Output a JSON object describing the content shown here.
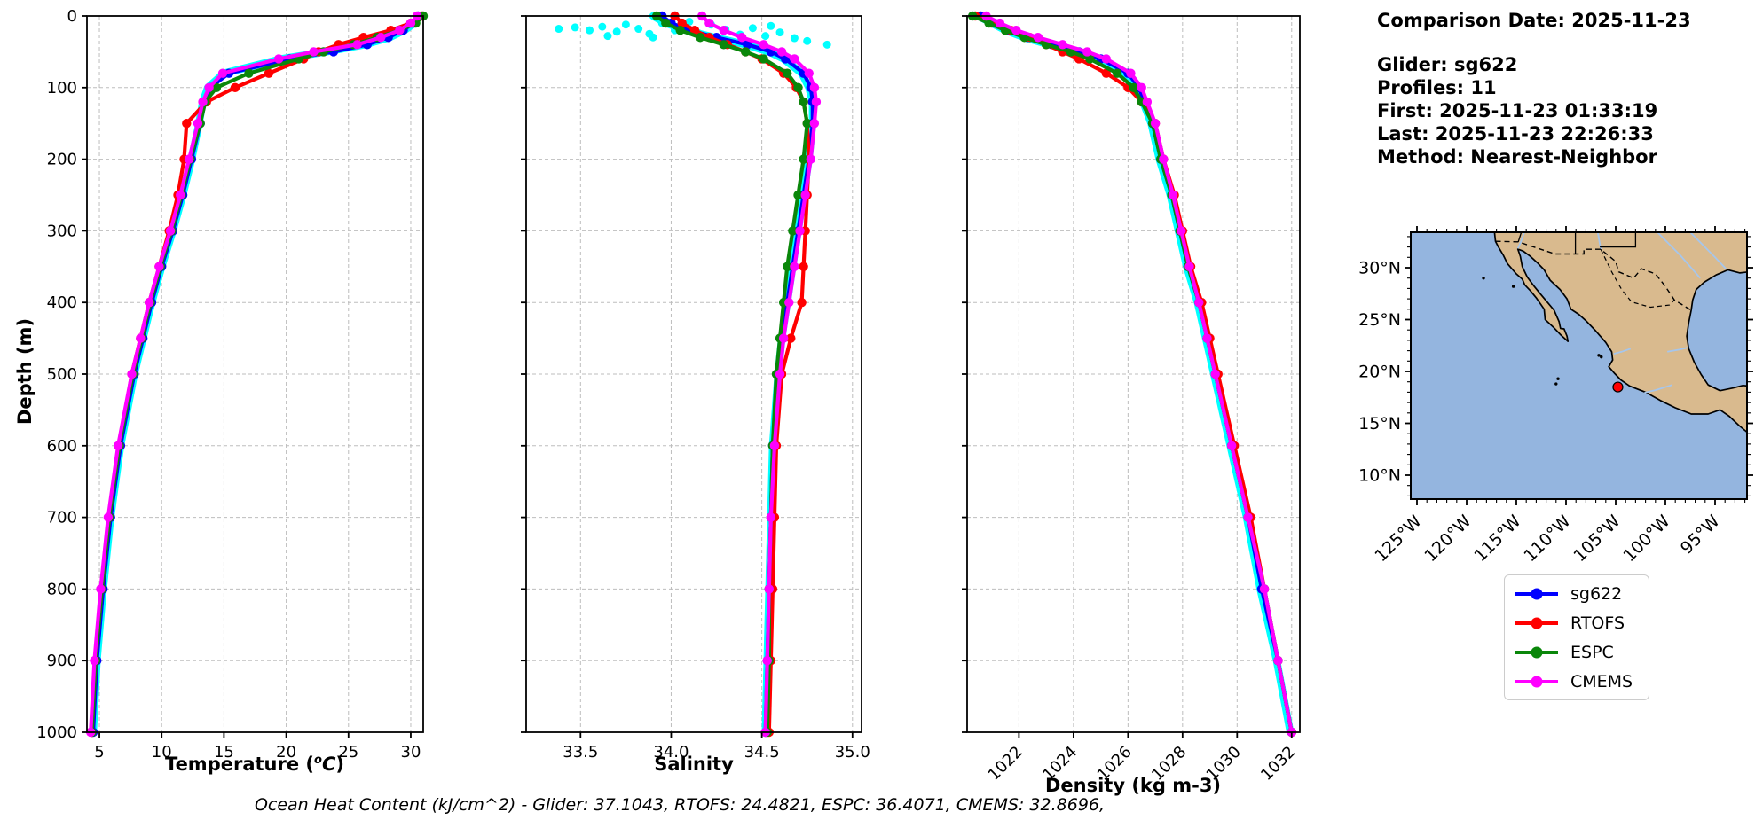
{
  "header": {
    "comparison_date": "Comparison Date: 2025-11-23",
    "glider": "Glider: sg622",
    "profiles": "Profiles: 11",
    "first": "First: 2025-11-23 01:33:19",
    "last": "Last: 2025-11-23 22:26:33",
    "method": "Method: Nearest-Neighbor"
  },
  "caption": "Ocean Heat Content (kJ/cm^2) - Glider: 37.1043,  RTOFS: 24.4821,  ESPC: 36.4071,  CMEMS: 32.8696,",
  "ocean_heat_content": {
    "units": "kJ/cm^2",
    "glider": 37.1043,
    "rtofs": 24.4821,
    "espc": 36.4071,
    "cmems": 32.8696
  },
  "ylabel": "Depth (m)",
  "temperature_xlabel": {
    "pre": "Temperature (",
    "sup": "o",
    "italic": "C",
    "post": ")"
  },
  "legend": {
    "items": [
      {
        "label": "sg622",
        "color": "#0000ff"
      },
      {
        "label": "RTOFS",
        "color": "#ff0000"
      },
      {
        "label": "ESPC",
        "color": "#0a870a"
      },
      {
        "label": "CMEMS",
        "color": "#ff00ff"
      }
    ]
  },
  "map": {
    "xtick_labels": [
      "125°W",
      "120°W",
      "115°W",
      "110°W",
      "105°W",
      "100°W",
      "95°W"
    ],
    "ytick_labels": [
      "30°N",
      "25°N",
      "20°N",
      "15°N",
      "10°N"
    ],
    "marker": {
      "lon": -104.78,
      "lat": 18.5,
      "color": "#ff0000"
    },
    "ocean_color": "#94b5df",
    "land_color": "#d9ba8e",
    "river_color": "#a6c6ec"
  },
  "chart_data": [
    {
      "id": "temperature",
      "type": "line",
      "xlabel": "Temperature (°C)",
      "ylabel": "Depth (m)",
      "xlim": [
        4.0,
        31.0
      ],
      "ylim": [
        0,
        1000
      ],
      "grid": true,
      "xticks": [
        5,
        10,
        15,
        20,
        25,
        30
      ],
      "xtick_labels": [
        "5",
        "10",
        "15",
        "20",
        "25",
        "30"
      ],
      "yticks": [
        0,
        100,
        200,
        300,
        400,
        500,
        600,
        700,
        800,
        900,
        1000
      ],
      "ytick_labels": [
        "0",
        "100",
        "200",
        "300",
        "400",
        "500",
        "600",
        "700",
        "800",
        "900",
        "1000"
      ],
      "depths": [
        0,
        10,
        20,
        30,
        40,
        50,
        60,
        80,
        100,
        120,
        150,
        200,
        250,
        300,
        350,
        400,
        450,
        500,
        600,
        700,
        800,
        900,
        1000
      ],
      "raw_series": {
        "name": "glider-raw",
        "color": "#00ffff",
        "values": [
          30.7,
          30.3,
          29.5,
          28.3,
          26.3,
          23.2,
          19.6,
          15.0,
          13.7,
          13.3,
          13.0,
          12.4,
          11.7,
          10.9,
          10.0,
          9.2,
          8.5,
          7.8,
          6.7,
          5.9,
          5.3,
          4.8,
          4.5
        ]
      },
      "series": [
        {
          "name": "sg622",
          "color": "#0000ff",
          "values": [
            30.6,
            30.2,
            29.4,
            28.2,
            26.5,
            23.8,
            20.3,
            15.4,
            13.9,
            13.4,
            13.1,
            12.4,
            11.7,
            10.9,
            10.0,
            9.2,
            8.5,
            7.8,
            6.7,
            5.9,
            5.3,
            4.8,
            4.5
          ]
        },
        {
          "name": "RTOFS",
          "color": "#ff0000",
          "values": [
            30.9,
            30.0,
            28.4,
            26.2,
            24.2,
            22.6,
            21.4,
            18.6,
            15.9,
            13.6,
            12.0,
            11.8,
            11.3,
            10.6,
            9.8,
            9.0,
            8.3,
            7.6,
            6.6,
            5.8,
            5.2,
            4.7,
            4.4
          ]
        },
        {
          "name": "ESPC",
          "color": "#0a870a",
          "values": [
            31.0,
            30.4,
            29.1,
            27.3,
            25.4,
            23.0,
            21.0,
            17.0,
            14.4,
            13.5,
            13.1,
            12.3,
            11.6,
            10.8,
            9.9,
            9.1,
            8.4,
            7.7,
            6.6,
            5.8,
            5.2,
            4.7,
            4.4
          ]
        },
        {
          "name": "CMEMS",
          "color": "#ff00ff",
          "values": [
            30.5,
            30.0,
            29.1,
            27.6,
            25.7,
            22.2,
            19.4,
            14.9,
            13.8,
            13.3,
            12.9,
            12.2,
            11.5,
            10.7,
            9.8,
            9.0,
            8.3,
            7.6,
            6.5,
            5.7,
            5.1,
            4.6,
            4.3
          ]
        }
      ]
    },
    {
      "id": "salinity",
      "type": "line",
      "xlabel": "Salinity",
      "ylabel": "",
      "xlim": [
        33.2,
        35.05
      ],
      "ylim": [
        0,
        1000
      ],
      "grid": true,
      "xticks": [
        33.5,
        34.0,
        34.5,
        35.0
      ],
      "xtick_labels": [
        "33.5",
        "34.0",
        "34.5",
        "35.0"
      ],
      "yticks": [
        0,
        100,
        200,
        300,
        400,
        500,
        600,
        700,
        800,
        900,
        1000
      ],
      "ytick_labels": [],
      "depths": [
        0,
        10,
        20,
        30,
        40,
        50,
        60,
        80,
        100,
        120,
        150,
        200,
        250,
        300,
        350,
        400,
        450,
        500,
        600,
        700,
        800,
        900,
        1000
      ],
      "raw_scatter": {
        "name": "glider-raw-scatter",
        "color": "#00ffff",
        "points": [
          [
            33.38,
            18
          ],
          [
            33.47,
            16
          ],
          [
            33.55,
            20
          ],
          [
            33.62,
            15
          ],
          [
            33.7,
            22
          ],
          [
            33.75,
            12
          ],
          [
            33.82,
            18
          ],
          [
            33.88,
            25
          ],
          [
            33.95,
            10
          ],
          [
            34.02,
            20
          ],
          [
            34.08,
            15
          ],
          [
            34.15,
            24
          ],
          [
            34.22,
            12
          ],
          [
            34.3,
            19
          ],
          [
            34.38,
            26
          ],
          [
            34.45,
            17
          ],
          [
            34.52,
            28
          ],
          [
            34.6,
            23
          ],
          [
            34.68,
            31
          ],
          [
            34.75,
            35
          ],
          [
            34.86,
            40
          ],
          [
            34.55,
            14
          ],
          [
            33.9,
            30
          ],
          [
            34.1,
            8
          ],
          [
            33.65,
            28
          ]
        ]
      },
      "raw_series": {
        "name": "glider-raw",
        "color": "#00ffff",
        "values": [
          33.9,
          33.97,
          34.08,
          34.24,
          34.41,
          34.54,
          34.62,
          34.72,
          34.76,
          34.78,
          34.78,
          34.76,
          34.73,
          34.7,
          34.67,
          34.64,
          34.61,
          34.59,
          34.56,
          34.55,
          34.54,
          34.53,
          34.52
        ]
      },
      "series": [
        {
          "name": "sg622",
          "color": "#0000ff",
          "values": [
            33.95,
            34.0,
            34.1,
            34.25,
            34.42,
            34.55,
            34.63,
            34.73,
            34.77,
            34.78,
            34.78,
            34.76,
            34.73,
            34.7,
            34.67,
            34.64,
            34.61,
            34.59,
            34.56,
            34.55,
            34.54,
            34.53,
            34.52
          ]
        },
        {
          "name": "RTOFS",
          "color": "#ff0000",
          "values": [
            34.02,
            34.06,
            34.13,
            34.21,
            34.31,
            34.41,
            34.5,
            34.62,
            34.69,
            34.73,
            34.75,
            34.76,
            34.75,
            34.74,
            34.73,
            34.72,
            34.66,
            34.61,
            34.58,
            34.57,
            34.56,
            34.55,
            34.54
          ]
        },
        {
          "name": "ESPC",
          "color": "#0a870a",
          "values": [
            33.92,
            33.97,
            34.05,
            34.16,
            34.29,
            34.41,
            34.51,
            34.64,
            34.7,
            34.73,
            34.75,
            34.73,
            34.7,
            34.67,
            34.64,
            34.62,
            34.6,
            34.58,
            34.56,
            34.55,
            34.54,
            34.54,
            34.53
          ]
        },
        {
          "name": "CMEMS",
          "color": "#ff00ff",
          "values": [
            34.17,
            34.21,
            34.29,
            34.39,
            34.51,
            34.61,
            34.68,
            34.76,
            34.79,
            34.8,
            34.79,
            34.77,
            34.74,
            34.71,
            34.68,
            34.65,
            34.62,
            34.6,
            34.57,
            34.55,
            34.54,
            34.53,
            34.52
          ]
        }
      ]
    },
    {
      "id": "density",
      "type": "line",
      "xlabel": "Density (kg m-3)",
      "ylabel": "",
      "xlim": [
        1020.1,
        1032.3
      ],
      "ylim": [
        0,
        1000
      ],
      "grid": true,
      "xticks": [
        1022,
        1024,
        1026,
        1028,
        1030,
        1032
      ],
      "xtick_labels": [
        "1022",
        "1024",
        "1026",
        "1028",
        "1030",
        "1032"
      ],
      "yticks": [
        0,
        100,
        200,
        300,
        400,
        500,
        600,
        700,
        800,
        900,
        1000
      ],
      "ytick_labels": [],
      "depths": [
        0,
        10,
        20,
        30,
        40,
        50,
        60,
        80,
        100,
        120,
        150,
        200,
        250,
        300,
        350,
        400,
        450,
        500,
        600,
        700,
        800,
        900,
        1000
      ],
      "raw_series": {
        "name": "glider-raw",
        "color": "#00ffff",
        "values": [
          1020.5,
          1021.0,
          1021.5,
          1022.2,
          1023.1,
          1024.1,
          1024.9,
          1025.9,
          1026.35,
          1026.55,
          1026.85,
          1027.15,
          1027.55,
          1027.85,
          1028.15,
          1028.55,
          1028.85,
          1029.15,
          1029.75,
          1030.35,
          1030.85,
          1031.45,
          1031.95
        ]
      },
      "series": [
        {
          "name": "sg622",
          "color": "#0000ff",
          "values": [
            1020.6,
            1021.1,
            1021.6,
            1022.3,
            1023.2,
            1024.2,
            1025.0,
            1026.0,
            1026.4,
            1026.6,
            1026.9,
            1027.2,
            1027.6,
            1027.9,
            1028.2,
            1028.6,
            1028.9,
            1029.2,
            1029.8,
            1030.4,
            1030.9,
            1031.5,
            1032.0
          ]
        },
        {
          "name": "RTOFS",
          "color": "#ff0000",
          "values": [
            1020.4,
            1021.0,
            1021.7,
            1022.4,
            1023.0,
            1023.6,
            1024.2,
            1025.2,
            1026.0,
            1026.5,
            1027.0,
            1027.3,
            1027.7,
            1028.0,
            1028.3,
            1028.7,
            1029.0,
            1029.3,
            1029.9,
            1030.5,
            1031.0,
            1031.5,
            1032.0
          ]
        },
        {
          "name": "ESPC",
          "color": "#0a870a",
          "values": [
            1020.3,
            1020.9,
            1021.5,
            1022.2,
            1023.0,
            1023.9,
            1024.6,
            1025.6,
            1026.2,
            1026.5,
            1026.9,
            1027.2,
            1027.6,
            1027.9,
            1028.2,
            1028.6,
            1028.9,
            1029.2,
            1029.8,
            1030.4,
            1031.0,
            1031.5,
            1032.0
          ]
        },
        {
          "name": "CMEMS",
          "color": "#ff00ff",
          "values": [
            1020.8,
            1021.3,
            1021.9,
            1022.7,
            1023.6,
            1024.5,
            1025.2,
            1026.1,
            1026.5,
            1026.7,
            1027.0,
            1027.3,
            1027.65,
            1027.95,
            1028.25,
            1028.6,
            1028.9,
            1029.2,
            1029.8,
            1030.4,
            1031.0,
            1031.5,
            1032.0
          ]
        }
      ]
    }
  ]
}
